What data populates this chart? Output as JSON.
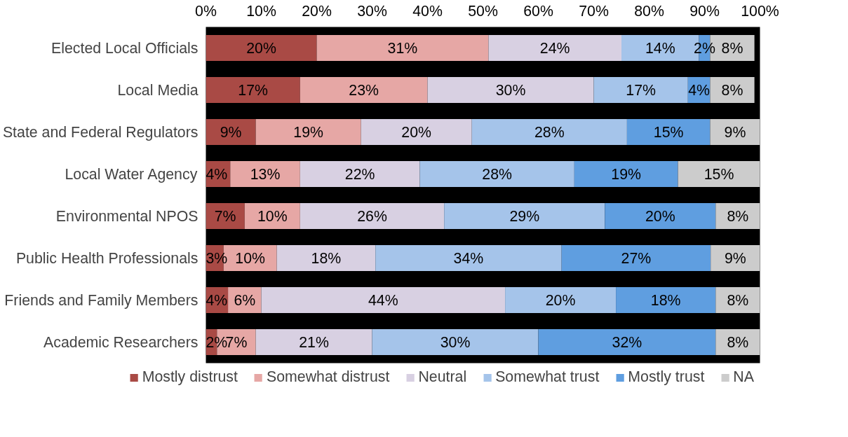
{
  "chart_data": {
    "type": "bar",
    "orientation": "horizontal",
    "stacked": true,
    "categories": [
      "Elected Local Officials",
      "Local Media",
      "State and Federal Regulators",
      "Local Water Agency",
      "Environmental NPOS",
      "Public Health Professionals",
      "Friends and Family Members",
      "Academic Researchers"
    ],
    "series": [
      {
        "name": "Mostly distrust",
        "color": "#a94a45",
        "values": [
          20,
          17,
          9,
          4.4,
          7,
          3.2,
          4,
          2
        ],
        "value_labels": [
          "20%",
          "17%",
          "9%",
          "4%",
          "7%",
          "3%",
          "4%",
          "2%"
        ]
      },
      {
        "name": "Somewhat distrust",
        "color": "#e6a7a5",
        "values": [
          31,
          23,
          19,
          12.6,
          10,
          9.6,
          6,
          7
        ],
        "value_labels": [
          "31%",
          "23%",
          "19%",
          "13%",
          "10%",
          "10%",
          "6%",
          "7%"
        ]
      },
      {
        "name": "Neutral",
        "color": "#d8d0e2",
        "values": [
          24,
          30,
          20,
          21.6,
          26,
          17.8,
          44,
          21
        ],
        "value_labels": [
          "24%",
          "30%",
          "20%",
          "22%",
          "26%",
          "18%",
          "44%",
          "21%"
        ]
      },
      {
        "name": "Somewhat trust",
        "color": "#a5c4ea",
        "values": [
          14,
          17,
          28,
          27.9,
          29,
          33.6,
          20,
          30
        ],
        "value_labels": [
          "14%",
          "17%",
          "28%",
          "28%",
          "29%",
          "34%",
          "20%",
          "30%"
        ]
      },
      {
        "name": "Mostly trust",
        "color": "#5f9ee0",
        "values": [
          2,
          4,
          15,
          18.7,
          20,
          26.9,
          18,
          32
        ],
        "value_labels": [
          "2%",
          "4%",
          "15%",
          "19%",
          "20%",
          "27%",
          "18%",
          "32%"
        ]
      },
      {
        "name": "NA",
        "color": "#cccccc",
        "values": [
          8,
          8,
          9,
          14.8,
          8,
          8.9,
          8,
          8
        ],
        "value_labels": [
          "8%",
          "8%",
          "9%",
          "15%",
          "8%",
          "9%",
          "8%",
          "8%"
        ]
      }
    ],
    "xlim": [
      0,
      100
    ],
    "xticks": [
      {
        "value": 0,
        "label": "0%"
      },
      {
        "value": 10,
        "label": "10%"
      },
      {
        "value": 20,
        "label": "20%"
      },
      {
        "value": 30,
        "label": "30%"
      },
      {
        "value": 40,
        "label": "40%"
      },
      {
        "value": 50,
        "label": "50%"
      },
      {
        "value": 60,
        "label": "60%"
      },
      {
        "value": 70,
        "label": "70%"
      },
      {
        "value": 80,
        "label": "80%"
      },
      {
        "value": 90,
        "label": "90%"
      },
      {
        "value": 100,
        "label": "100%"
      }
    ],
    "grid": false,
    "legend": "bottom"
  }
}
